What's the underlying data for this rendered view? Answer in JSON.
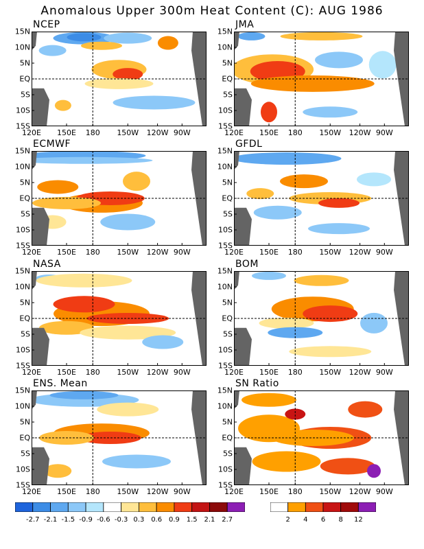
{
  "figure": {
    "title": "Anomalous Upper 300m Heat Content (C): AUG 1986"
  },
  "colors": {
    "anomaly_scale": [
      "#1e64dc",
      "#3c8ce6",
      "#5ea8f0",
      "#8cc8f8",
      "#b4e6fc",
      "#ffffff",
      "#ffe696",
      "#ffbe3c",
      "#fa8c00",
      "#f03c14",
      "#c31414",
      "#8c0a0a",
      "#8c1eb4"
    ],
    "sn_scale": [
      "#ffffff",
      "#ffa000",
      "#f05014",
      "#c81414",
      "#a00a0a",
      "#8c1eb4"
    ],
    "land": "#646464"
  },
  "axes": {
    "lat_labels": [
      "15N",
      "10N",
      "5N",
      "EQ",
      "5S",
      "10S",
      "15S"
    ],
    "lon_labels": [
      "120E",
      "150E",
      "180",
      "150W",
      "120W",
      "90W"
    ]
  },
  "panels": [
    {
      "title": "NCEP"
    },
    {
      "title": "JMA"
    },
    {
      "title": "ECMWF"
    },
    {
      "title": "GFDL"
    },
    {
      "title": "NASA"
    },
    {
      "title": "BOM"
    },
    {
      "title": "ENS. Mean"
    },
    {
      "title": "SN Ratio"
    }
  ],
  "colorbars": {
    "anomaly": {
      "labels": [
        "-2.7",
        "-2.1",
        "-1.5",
        "-0.9",
        "-0.6",
        "-0.3",
        "0.3",
        "0.6",
        "0.9",
        "1.5",
        "2.1",
        "2.7"
      ]
    },
    "sn": {
      "labels": [
        "2",
        "4",
        "6",
        "8",
        "12"
      ]
    }
  }
}
